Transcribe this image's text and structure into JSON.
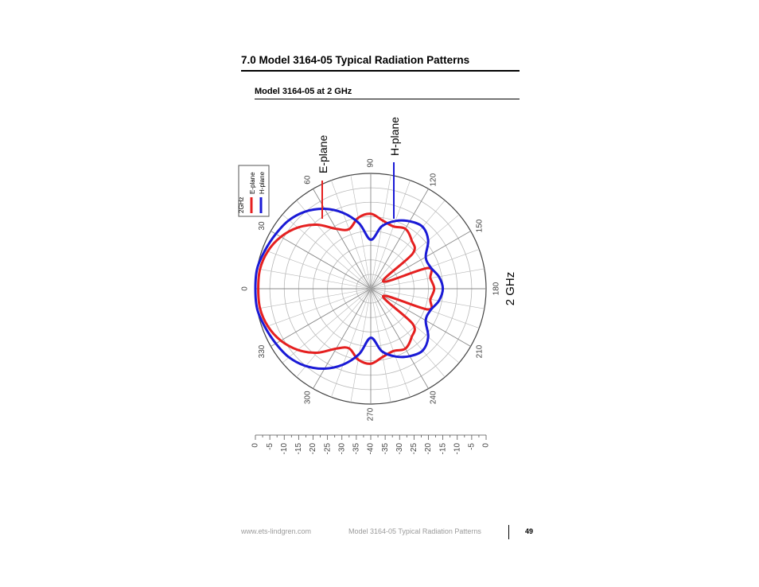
{
  "document": {
    "section_title": "7.0   Model 3164-05 Typical Radiation Patterns",
    "subtitle": "Model 3164-05 at 2 GHz"
  },
  "chart_data": {
    "type": "polar",
    "frequency_label": "2 GHz",
    "legend": {
      "title": "2GHz",
      "entries": [
        "E-plane",
        "H-plane"
      ]
    },
    "callouts": {
      "e_plane": "E-plane",
      "h_plane": "H-plane"
    },
    "angle_ticks": [
      "0",
      "30",
      "60",
      "90",
      "120",
      "150",
      "180",
      "210",
      "240",
      "270",
      "300",
      "330"
    ],
    "radial_scale_labels": [
      "0",
      "-5",
      "-10",
      "-15",
      "-20",
      "-25",
      "-30",
      "-35",
      "-40",
      "-35",
      "-30",
      "-25",
      "-20",
      "-15",
      "-10",
      "-5",
      "0"
    ],
    "r_range_db": [
      -40,
      0
    ],
    "angle_units": "degrees",
    "colors": {
      "e_plane": "#e52020",
      "h_plane": "#1a1ad6",
      "grid": "#b8b8b8"
    },
    "series": [
      {
        "name": "E-plane",
        "angles": [
          0,
          10,
          20,
          30,
          40,
          50,
          60,
          70,
          80,
          90,
          100,
          110,
          120,
          130,
          140,
          150,
          160,
          170,
          180,
          190,
          200,
          210,
          220,
          230,
          240,
          250,
          260,
          270,
          280,
          290,
          300,
          310,
          320,
          330,
          340,
          350
        ],
        "values_db": [
          -1,
          -1,
          -2,
          -4,
          -7,
          -11,
          -16,
          -18,
          -15,
          -14,
          -16,
          -17,
          -16,
          -18,
          -21,
          -35,
          -19,
          -19,
          -18,
          -19,
          -19,
          -35,
          -21,
          -18,
          -16,
          -17,
          -16,
          -14,
          -15,
          -18,
          -16,
          -11,
          -7,
          -4,
          -2,
          -1
        ]
      },
      {
        "name": "H-plane",
        "angles": [
          0,
          10,
          20,
          30,
          40,
          50,
          60,
          70,
          80,
          90,
          100,
          110,
          120,
          130,
          140,
          150,
          160,
          170,
          180,
          190,
          200,
          210,
          220,
          230,
          240,
          250,
          260,
          270,
          280,
          290,
          300,
          310,
          320,
          330,
          340,
          350
        ],
        "values_db": [
          0,
          0,
          -1,
          -2,
          -3,
          -5,
          -8,
          -12,
          -17,
          -23,
          -18,
          -15,
          -13,
          -12,
          -14,
          -18,
          -18,
          -16,
          -15,
          -16,
          -18,
          -18,
          -14,
          -12,
          -13,
          -15,
          -18,
          -23,
          -17,
          -12,
          -8,
          -5,
          -3,
          -2,
          -1,
          0
        ]
      }
    ]
  },
  "footer": {
    "url": "www.ets-lindgren.com",
    "doc_title": "Model 3164-05 Typical Radiation Patterns",
    "page_number": "49"
  }
}
